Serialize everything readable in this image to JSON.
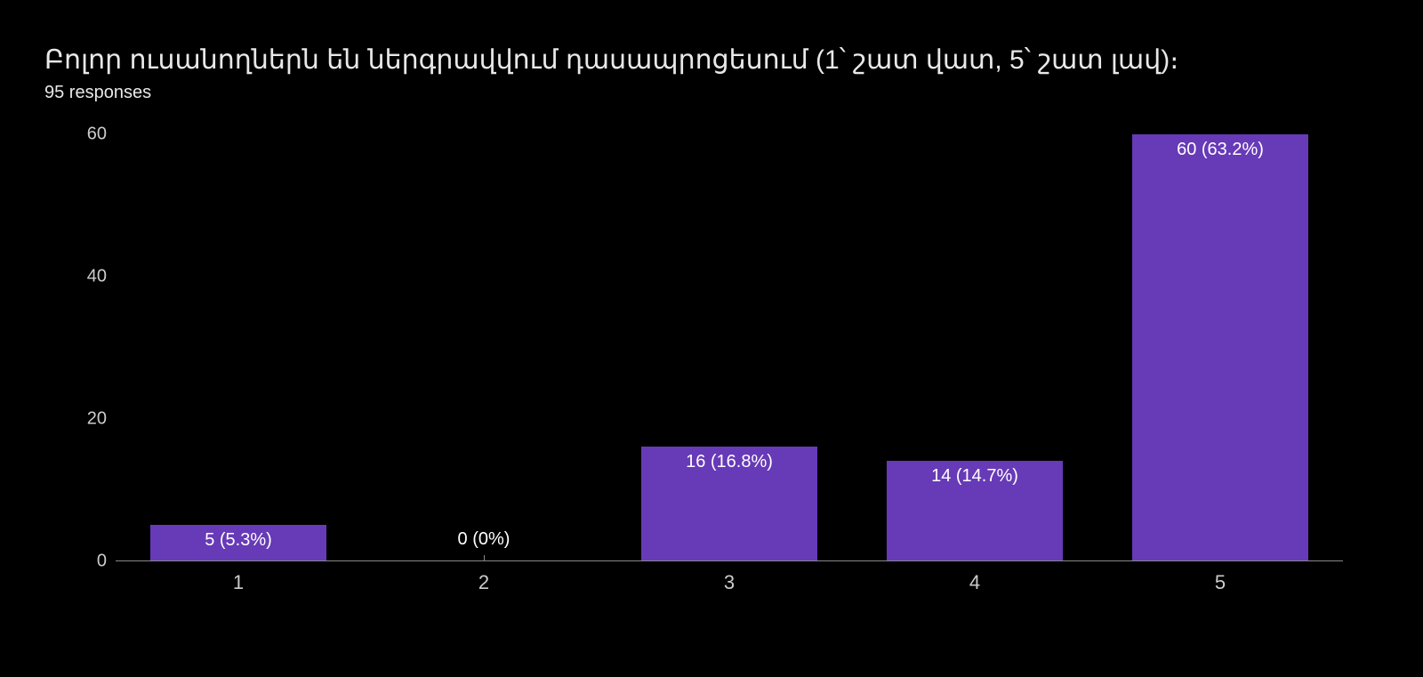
{
  "chart": {
    "type": "bar",
    "title": "Բոլոր ուսանողներն են ներգրավվում դասապրոցեսում (1՝ շատ վատ, 5՝ շատ լավ)։",
    "subtitle": "95 responses",
    "background_color": "#000000",
    "bar_color": "#673ab7",
    "text_color": "#e8e8e8",
    "axis_text_color": "#cccccc",
    "label_text_color": "#ffffff",
    "title_fontsize": 30,
    "subtitle_fontsize": 20,
    "axis_fontsize": 20,
    "label_fontsize": 20,
    "ylim": [
      0,
      60
    ],
    "yticks": [
      0,
      20,
      40,
      60
    ],
    "bar_width_pct": 72,
    "categories": [
      "1",
      "2",
      "3",
      "4",
      "5"
    ],
    "values": [
      5,
      0,
      16,
      14,
      60
    ],
    "value_labels": [
      "5 (5.3%)",
      "0 (0%)",
      "16 (16.8%)",
      "14 (14.7%)",
      "60 (63.2%)"
    ],
    "label_positions": [
      "inside",
      "outside",
      "inside",
      "inside",
      "inside"
    ]
  }
}
